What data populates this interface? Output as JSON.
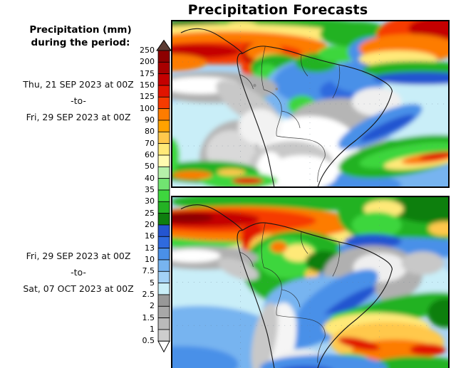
{
  "title": "Precipitation Forecasts",
  "legend": {
    "heading_line1": "Precipitation (mm)",
    "heading_line2": "during the period:"
  },
  "panels": [
    {
      "id": "top",
      "period_start": "Thu, 21 SEP 2023 at 00Z",
      "separator": "-to-",
      "period_end": "Fri, 29 SEP 2023 at 00Z"
    },
    {
      "id": "bottom",
      "period_start": "Fri, 29 SEP 2023 at 00Z",
      "separator": "-to-",
      "period_end": "Sat, 07 OCT 2023 at 00Z"
    }
  ],
  "chart_data": {
    "type": "heatmap",
    "title": "Precipitation Forecasts",
    "units": "mm",
    "region": "South America and adjacent oceans",
    "legend_position": "left",
    "colorbar": {
      "levels_mm_low_to_high": [
        "0.5",
        "1",
        "1.5",
        "2",
        "2.5",
        "5",
        "7.5",
        "10",
        "13",
        "16",
        "20",
        "25",
        "30",
        "35",
        "40",
        "50",
        "60",
        "70",
        "80",
        "90",
        "100",
        "125",
        "150",
        "175",
        "200",
        "250"
      ],
      "band_colors_low_to_high": [
        "#cdcdcd",
        "#bababa",
        "#a8a8a8",
        "#989898",
        "#c9eef8",
        "#a3d1f6",
        "#77b4f0",
        "#4a90e8",
        "#2f6ade",
        "#2455d0",
        "#0f7f0f",
        "#24b224",
        "#3ed63e",
        "#71e471",
        "#b5f1a9",
        "#fffbb0",
        "#ffe978",
        "#ffc84c",
        "#ffa200",
        "#fd7c00",
        "#f63b00",
        "#e11400",
        "#c40000",
        "#a80000",
        "#8d0000"
      ],
      "above_max_color": "#5d3c34",
      "below_min_color": "#ffffff"
    },
    "map_panels": [
      {
        "period": "Thu, 21 SEP 2023 at 00Z -to- Fri, 29 SEP 2023 at 00Z"
      },
      {
        "period": "Fri, 29 SEP 2023 at 00Z -to- Sat, 07 OCT 2023 at 00Z"
      }
    ]
  }
}
